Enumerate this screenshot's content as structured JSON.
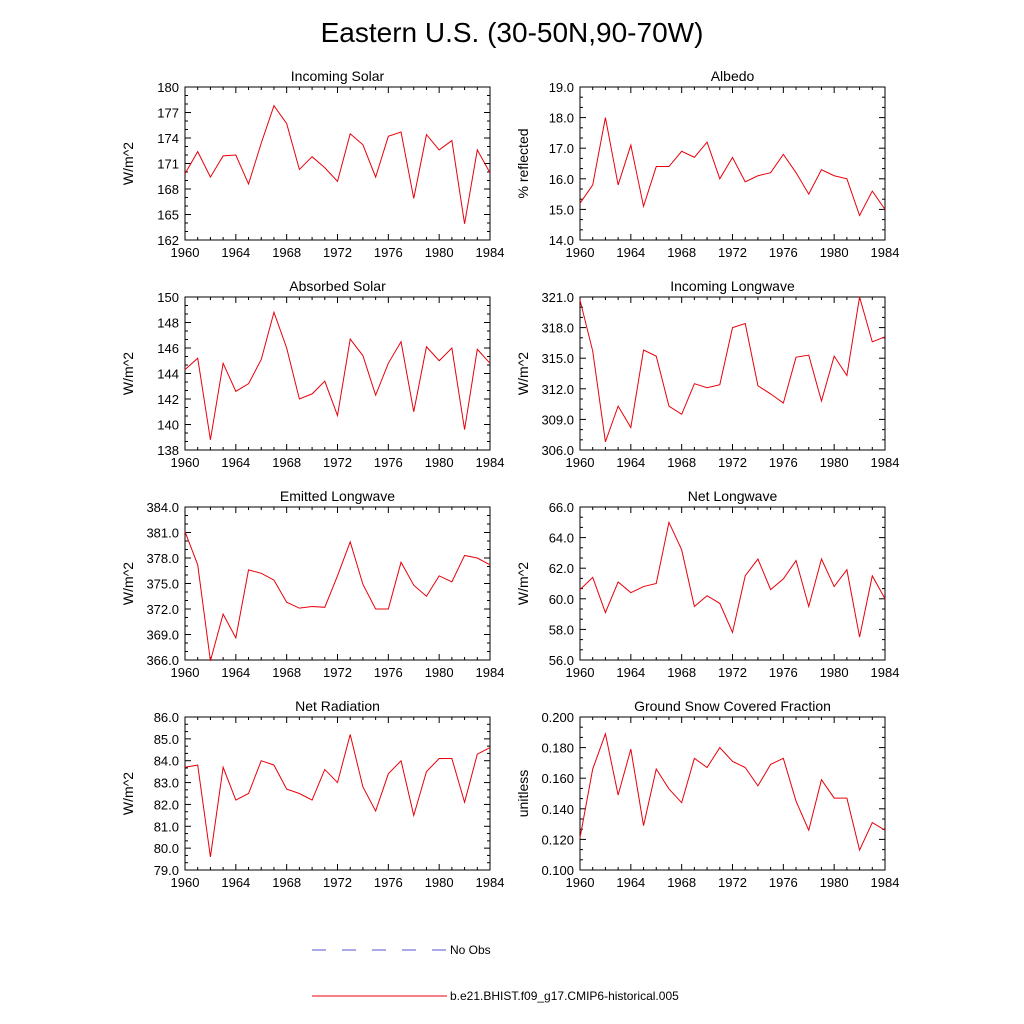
{
  "figure": {
    "title": "Eastern U.S. (30-50N,90-70W)",
    "legend": [
      {
        "label": "No Obs",
        "color": "#5555cc",
        "style": "dashed"
      },
      {
        "label": "b.e21.BHIST.f09_g17.CMIP6-historical.005",
        "color": "#e8000b",
        "style": "solid"
      }
    ]
  },
  "chart_data": [
    {
      "type": "line",
      "title": "Incoming Solar",
      "ylabel": "W/m^2",
      "xlabel": "",
      "xlim": [
        1960,
        1984
      ],
      "ylim": [
        162,
        180
      ],
      "xticks": [
        1960,
        1964,
        1968,
        1972,
        1976,
        1980,
        1984
      ],
      "yticks": [
        "162",
        "165",
        "168",
        "171",
        "174",
        "177",
        "180"
      ],
      "series": [
        {
          "name": "b.e21.BHIST.f09_g17.CMIP6-historical.005",
          "color": "#e8000b",
          "x": [
            1960,
            1961,
            1962,
            1963,
            1964,
            1965,
            1966,
            1967,
            1968,
            1969,
            1970,
            1971,
            1972,
            1973,
            1974,
            1975,
            1976,
            1977,
            1978,
            1979,
            1980,
            1981,
            1982,
            1983,
            1984
          ],
          "values": [
            169.8,
            172.4,
            169.4,
            171.9,
            172.0,
            168.6,
            173.4,
            177.8,
            175.7,
            170.3,
            171.8,
            170.5,
            168.9,
            174.5,
            173.2,
            169.4,
            174.2,
            174.7,
            166.9,
            174.4,
            172.6,
            173.7,
            163.9,
            172.6,
            169.9
          ]
        }
      ]
    },
    {
      "type": "line",
      "title": "Albedo",
      "ylabel": "% reflected",
      "xlabel": "",
      "xlim": [
        1960,
        1984
      ],
      "ylim": [
        14.0,
        19.0
      ],
      "xticks": [
        1960,
        1964,
        1968,
        1972,
        1976,
        1980,
        1984
      ],
      "yticks": [
        "14.0",
        "15.0",
        "16.0",
        "17.0",
        "18.0",
        "19.0"
      ],
      "series": [
        {
          "name": "b.e21.BHIST.f09_g17.CMIP6-historical.005",
          "color": "#e8000b",
          "x": [
            1960,
            1961,
            1962,
            1963,
            1964,
            1965,
            1966,
            1967,
            1968,
            1969,
            1970,
            1971,
            1972,
            1973,
            1974,
            1975,
            1976,
            1977,
            1978,
            1979,
            1980,
            1981,
            1982,
            1983,
            1984
          ],
          "values": [
            15.2,
            15.8,
            18.0,
            15.8,
            17.1,
            15.1,
            16.4,
            16.4,
            16.9,
            16.7,
            17.2,
            16.0,
            16.7,
            15.9,
            16.1,
            16.2,
            16.8,
            16.2,
            15.5,
            16.3,
            16.1,
            16.0,
            14.8,
            15.6,
            15.0
          ]
        }
      ]
    },
    {
      "type": "line",
      "title": "Absorbed Solar",
      "ylabel": "W/m^2",
      "xlabel": "",
      "xlim": [
        1960,
        1984
      ],
      "ylim": [
        138,
        150
      ],
      "xticks": [
        1960,
        1964,
        1968,
        1972,
        1976,
        1980,
        1984
      ],
      "yticks": [
        "138",
        "140",
        "142",
        "144",
        "146",
        "148",
        "150"
      ],
      "series": [
        {
          "name": "b.e21.BHIST.f09_g17.CMIP6-historical.005",
          "color": "#e8000b",
          "x": [
            1960,
            1961,
            1962,
            1963,
            1964,
            1965,
            1966,
            1967,
            1968,
            1969,
            1970,
            1971,
            1972,
            1973,
            1974,
            1975,
            1976,
            1977,
            1978,
            1979,
            1980,
            1981,
            1982,
            1983,
            1984
          ],
          "values": [
            144.3,
            145.2,
            138.8,
            144.8,
            142.6,
            143.2,
            145.1,
            148.8,
            146.0,
            142.0,
            142.4,
            143.4,
            140.7,
            146.7,
            145.4,
            142.3,
            144.8,
            146.5,
            141.0,
            146.1,
            145.0,
            146.0,
            139.6,
            145.9,
            144.8
          ]
        }
      ]
    },
    {
      "type": "line",
      "title": "Incoming Longwave",
      "ylabel": "W/m^2",
      "xlabel": "",
      "xlim": [
        1960,
        1984
      ],
      "ylim": [
        306.0,
        321.0
      ],
      "xticks": [
        1960,
        1964,
        1968,
        1972,
        1976,
        1980,
        1984
      ],
      "yticks": [
        "306.0",
        "309.0",
        "312.0",
        "315.0",
        "318.0",
        "321.0"
      ],
      "series": [
        {
          "name": "b.e21.BHIST.f09_g17.CMIP6-historical.005",
          "color": "#e8000b",
          "x": [
            1960,
            1961,
            1962,
            1963,
            1964,
            1965,
            1966,
            1967,
            1968,
            1969,
            1970,
            1971,
            1972,
            1973,
            1974,
            1975,
            1976,
            1977,
            1978,
            1979,
            1980,
            1981,
            1982,
            1983,
            1984
          ],
          "values": [
            320.7,
            315.7,
            306.8,
            310.3,
            308.2,
            315.8,
            315.2,
            310.3,
            309.5,
            312.5,
            312.1,
            312.4,
            318.0,
            318.4,
            312.3,
            311.5,
            310.6,
            315.1,
            315.3,
            310.8,
            315.2,
            313.3,
            321.0,
            316.6,
            317.1
          ]
        }
      ]
    },
    {
      "type": "line",
      "title": "Emitted Longwave",
      "ylabel": "W/m^2",
      "xlabel": "",
      "xlim": [
        1960,
        1984
      ],
      "ylim": [
        366.0,
        384.0
      ],
      "xticks": [
        1960,
        1964,
        1968,
        1972,
        1976,
        1980,
        1984
      ],
      "yticks": [
        "366.0",
        "369.0",
        "372.0",
        "375.0",
        "378.0",
        "381.0",
        "384.0"
      ],
      "series": [
        {
          "name": "b.e21.BHIST.f09_g17.CMIP6-historical.005",
          "color": "#e8000b",
          "x": [
            1960,
            1961,
            1962,
            1963,
            1964,
            1965,
            1966,
            1967,
            1968,
            1969,
            1970,
            1971,
            1972,
            1973,
            1974,
            1975,
            1976,
            1977,
            1978,
            1979,
            1980,
            1981,
            1982,
            1983,
            1984
          ],
          "values": [
            381.1,
            377.2,
            365.9,
            371.4,
            368.6,
            376.6,
            376.2,
            375.4,
            372.8,
            372.1,
            372.3,
            372.2,
            375.9,
            379.9,
            374.9,
            372.0,
            372.0,
            377.5,
            374.8,
            373.5,
            375.9,
            375.2,
            378.3,
            378.0,
            377.2
          ]
        }
      ]
    },
    {
      "type": "line",
      "title": "Net Longwave",
      "ylabel": "W/m^2",
      "xlabel": "",
      "xlim": [
        1960,
        1984
      ],
      "ylim": [
        56.0,
        66.0
      ],
      "xticks": [
        1960,
        1964,
        1968,
        1972,
        1976,
        1980,
        1984
      ],
      "yticks": [
        "56.0",
        "58.0",
        "60.0",
        "62.0",
        "64.0",
        "66.0"
      ],
      "series": [
        {
          "name": "b.e21.BHIST.f09_g17.CMIP6-historical.005",
          "color": "#e8000b",
          "x": [
            1960,
            1961,
            1962,
            1963,
            1964,
            1965,
            1966,
            1967,
            1968,
            1969,
            1970,
            1971,
            1972,
            1973,
            1974,
            1975,
            1976,
            1977,
            1978,
            1979,
            1980,
            1981,
            1982,
            1983,
            1984
          ],
          "values": [
            60.6,
            61.4,
            59.1,
            61.1,
            60.4,
            60.8,
            61.0,
            65.0,
            63.2,
            59.5,
            60.2,
            59.7,
            57.8,
            61.5,
            62.6,
            60.6,
            61.3,
            62.5,
            59.5,
            62.6,
            60.8,
            61.9,
            57.5,
            61.5,
            60.0
          ]
        }
      ]
    },
    {
      "type": "line",
      "title": "Net Radiation",
      "ylabel": "W/m^2",
      "xlabel": "",
      "xlim": [
        1960,
        1984
      ],
      "ylim": [
        79.0,
        86.0
      ],
      "xticks": [
        1960,
        1964,
        1968,
        1972,
        1976,
        1980,
        1984
      ],
      "yticks": [
        "79.0",
        "80.0",
        "81.0",
        "82.0",
        "83.0",
        "84.0",
        "85.0",
        "86.0"
      ],
      "series": [
        {
          "name": "b.e21.BHIST.f09_g17.CMIP6-historical.005",
          "color": "#e8000b",
          "x": [
            1960,
            1961,
            1962,
            1963,
            1964,
            1965,
            1966,
            1967,
            1968,
            1969,
            1970,
            1971,
            1972,
            1973,
            1974,
            1975,
            1976,
            1977,
            1978,
            1979,
            1980,
            1981,
            1982,
            1983,
            1984
          ],
          "values": [
            83.7,
            83.8,
            79.6,
            83.7,
            82.2,
            82.5,
            84.0,
            83.8,
            82.7,
            82.5,
            82.2,
            83.6,
            83.0,
            85.2,
            82.8,
            81.7,
            83.4,
            84.0,
            81.5,
            83.5,
            84.1,
            84.1,
            82.1,
            84.3,
            84.6
          ]
        }
      ]
    },
    {
      "type": "line",
      "title": "Ground Snow Covered Fraction",
      "ylabel": "unitless",
      "xlabel": "",
      "xlim": [
        1960,
        1984
      ],
      "ylim": [
        0.1,
        0.2
      ],
      "xticks": [
        1960,
        1964,
        1968,
        1972,
        1976,
        1980,
        1984
      ],
      "yticks": [
        "0.100",
        "0.120",
        "0.140",
        "0.160",
        "0.180",
        "0.200"
      ],
      "series": [
        {
          "name": "b.e21.BHIST.f09_g17.CMIP6-historical.005",
          "color": "#e8000b",
          "x": [
            1960,
            1961,
            1962,
            1963,
            1964,
            1965,
            1966,
            1967,
            1968,
            1969,
            1970,
            1971,
            1972,
            1973,
            1974,
            1975,
            1976,
            1977,
            1978,
            1979,
            1980,
            1981,
            1982,
            1983,
            1984
          ],
          "values": [
            0.121,
            0.166,
            0.189,
            0.149,
            0.179,
            0.129,
            0.166,
            0.153,
            0.144,
            0.173,
            0.167,
            0.18,
            0.171,
            0.167,
            0.155,
            0.169,
            0.173,
            0.145,
            0.126,
            0.159,
            0.147,
            0.147,
            0.113,
            0.131,
            0.126
          ]
        }
      ]
    }
  ]
}
